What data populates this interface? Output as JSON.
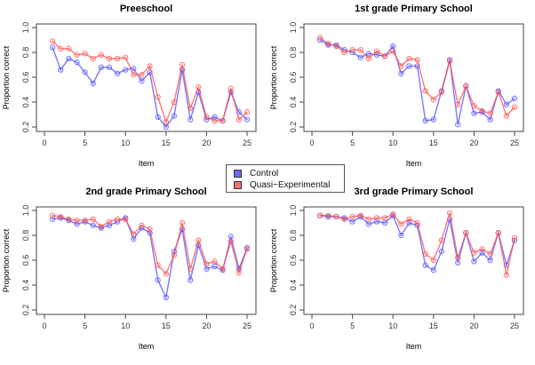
{
  "chart_data": [
    {
      "type": "line",
      "title": "Preeschool",
      "xlabel": "Item",
      "ylabel": "Proportion correct",
      "xlim": [
        0,
        25
      ],
      "ylim": [
        0.2,
        1.0
      ],
      "x_ticks": [
        "0",
        "5",
        "10",
        "15",
        "20",
        "25"
      ],
      "y_ticks": [
        "0.2",
        "0.4",
        "0.6",
        "0.8",
        "1.0"
      ],
      "x": [
        1,
        2,
        3,
        4,
        5,
        6,
        7,
        8,
        9,
        10,
        11,
        12,
        13,
        14,
        15,
        16,
        17,
        18,
        19,
        20,
        21,
        22,
        23,
        24,
        25
      ],
      "series": [
        {
          "name": "Control",
          "values": [
            0.84,
            0.66,
            0.75,
            0.72,
            0.64,
            0.55,
            0.68,
            0.68,
            0.63,
            0.66,
            0.67,
            0.57,
            0.64,
            0.28,
            0.2,
            0.29,
            0.66,
            0.26,
            0.48,
            0.26,
            0.28,
            0.25,
            0.48,
            0.32,
            0.26
          ]
        },
        {
          "name": "Quasi-Experimental",
          "values": [
            0.89,
            0.83,
            0.83,
            0.78,
            0.79,
            0.75,
            0.78,
            0.75,
            0.75,
            0.76,
            0.62,
            0.62,
            0.69,
            0.44,
            0.24,
            0.4,
            0.7,
            0.35,
            0.52,
            0.28,
            0.25,
            0.25,
            0.51,
            0.26,
            0.32
          ]
        }
      ]
    },
    {
      "type": "line",
      "title": "1st grade Primary School",
      "xlabel": "Item",
      "ylabel": "Proportion correct",
      "xlim": [
        0,
        25
      ],
      "ylim": [
        0.2,
        1.0
      ],
      "x_ticks": [
        "0",
        "5",
        "10",
        "15",
        "20",
        "25"
      ],
      "y_ticks": [
        "0.2",
        "0.4",
        "0.6",
        "0.8",
        "1.0"
      ],
      "x": [
        1,
        2,
        3,
        4,
        5,
        6,
        7,
        8,
        9,
        10,
        11,
        12,
        13,
        14,
        15,
        16,
        17,
        18,
        19,
        20,
        21,
        22,
        23,
        24,
        25
      ],
      "series": [
        {
          "name": "Control",
          "values": [
            0.9,
            0.86,
            0.86,
            0.82,
            0.8,
            0.76,
            0.79,
            0.78,
            0.77,
            0.85,
            0.63,
            0.69,
            0.69,
            0.25,
            0.26,
            0.49,
            0.74,
            0.22,
            0.53,
            0.31,
            0.32,
            0.26,
            0.49,
            0.38,
            0.43
          ]
        },
        {
          "name": "Quasi-Experimental",
          "values": [
            0.92,
            0.87,
            0.85,
            0.8,
            0.82,
            0.82,
            0.75,
            0.81,
            0.77,
            0.81,
            0.69,
            0.75,
            0.74,
            0.49,
            0.42,
            0.48,
            0.73,
            0.38,
            0.53,
            0.37,
            0.33,
            0.31,
            0.48,
            0.29,
            0.36
          ]
        }
      ]
    },
    {
      "type": "line",
      "title": "2nd grade Primary School",
      "xlabel": "Item",
      "ylabel": "Proportion correct",
      "xlim": [
        0,
        25
      ],
      "ylim": [
        0.2,
        1.0
      ],
      "x_ticks": [
        "0",
        "5",
        "10",
        "15",
        "20",
        "25"
      ],
      "y_ticks": [
        "0.2",
        "0.4",
        "0.6",
        "0.8",
        "1.0"
      ],
      "x": [
        1,
        2,
        3,
        4,
        5,
        6,
        7,
        8,
        9,
        10,
        11,
        12,
        13,
        14,
        15,
        16,
        17,
        18,
        19,
        20,
        21,
        22,
        23,
        24,
        25
      ],
      "series": [
        {
          "name": "Control",
          "values": [
            0.93,
            0.94,
            0.92,
            0.89,
            0.91,
            0.88,
            0.86,
            0.88,
            0.91,
            0.94,
            0.77,
            0.86,
            0.82,
            0.44,
            0.3,
            0.67,
            0.85,
            0.44,
            0.72,
            0.53,
            0.55,
            0.52,
            0.79,
            0.53,
            0.7
          ]
        },
        {
          "name": "Quasi-Experimental",
          "values": [
            0.96,
            0.95,
            0.93,
            0.92,
            0.92,
            0.93,
            0.87,
            0.91,
            0.93,
            0.93,
            0.81,
            0.88,
            0.85,
            0.56,
            0.49,
            0.64,
            0.9,
            0.53,
            0.76,
            0.57,
            0.59,
            0.53,
            0.75,
            0.5,
            0.69
          ]
        }
      ]
    },
    {
      "type": "line",
      "title": "3rd grade Primary School",
      "xlabel": "Item",
      "ylabel": "Proportion correct",
      "xlim": [
        0,
        25
      ],
      "ylim": [
        0.2,
        1.0
      ],
      "x_ticks": [
        "0",
        "5",
        "10",
        "15",
        "20",
        "25"
      ],
      "y_ticks": [
        "0.2",
        "0.4",
        "0.6",
        "0.8",
        "1.0"
      ],
      "x": [
        1,
        2,
        3,
        4,
        5,
        6,
        7,
        8,
        9,
        10,
        11,
        12,
        13,
        14,
        15,
        16,
        17,
        18,
        19,
        20,
        21,
        22,
        23,
        24,
        25
      ],
      "series": [
        {
          "name": "Control",
          "values": [
            0.96,
            0.95,
            0.95,
            0.94,
            0.91,
            0.95,
            0.89,
            0.91,
            0.9,
            0.96,
            0.8,
            0.9,
            0.88,
            0.56,
            0.52,
            0.67,
            0.93,
            0.58,
            0.82,
            0.59,
            0.66,
            0.6,
            0.82,
            0.56,
            0.76
          ]
        },
        {
          "name": "Quasi-Experimental",
          "values": [
            0.96,
            0.96,
            0.95,
            0.93,
            0.95,
            0.96,
            0.93,
            0.94,
            0.94,
            0.97,
            0.89,
            0.93,
            0.9,
            0.65,
            0.6,
            0.76,
            0.98,
            0.62,
            0.82,
            0.66,
            0.69,
            0.65,
            0.82,
            0.48,
            0.78
          ]
        }
      ]
    }
  ],
  "legend": {
    "placement": "center",
    "entries": [
      {
        "label": "Control",
        "color": "#6b6bf2"
      },
      {
        "label": "Quasi−Experimental",
        "color": "#f07474"
      }
    ]
  },
  "colors": {
    "control_line": "#4d4dff",
    "experimental_line": "#ff4d4d"
  }
}
